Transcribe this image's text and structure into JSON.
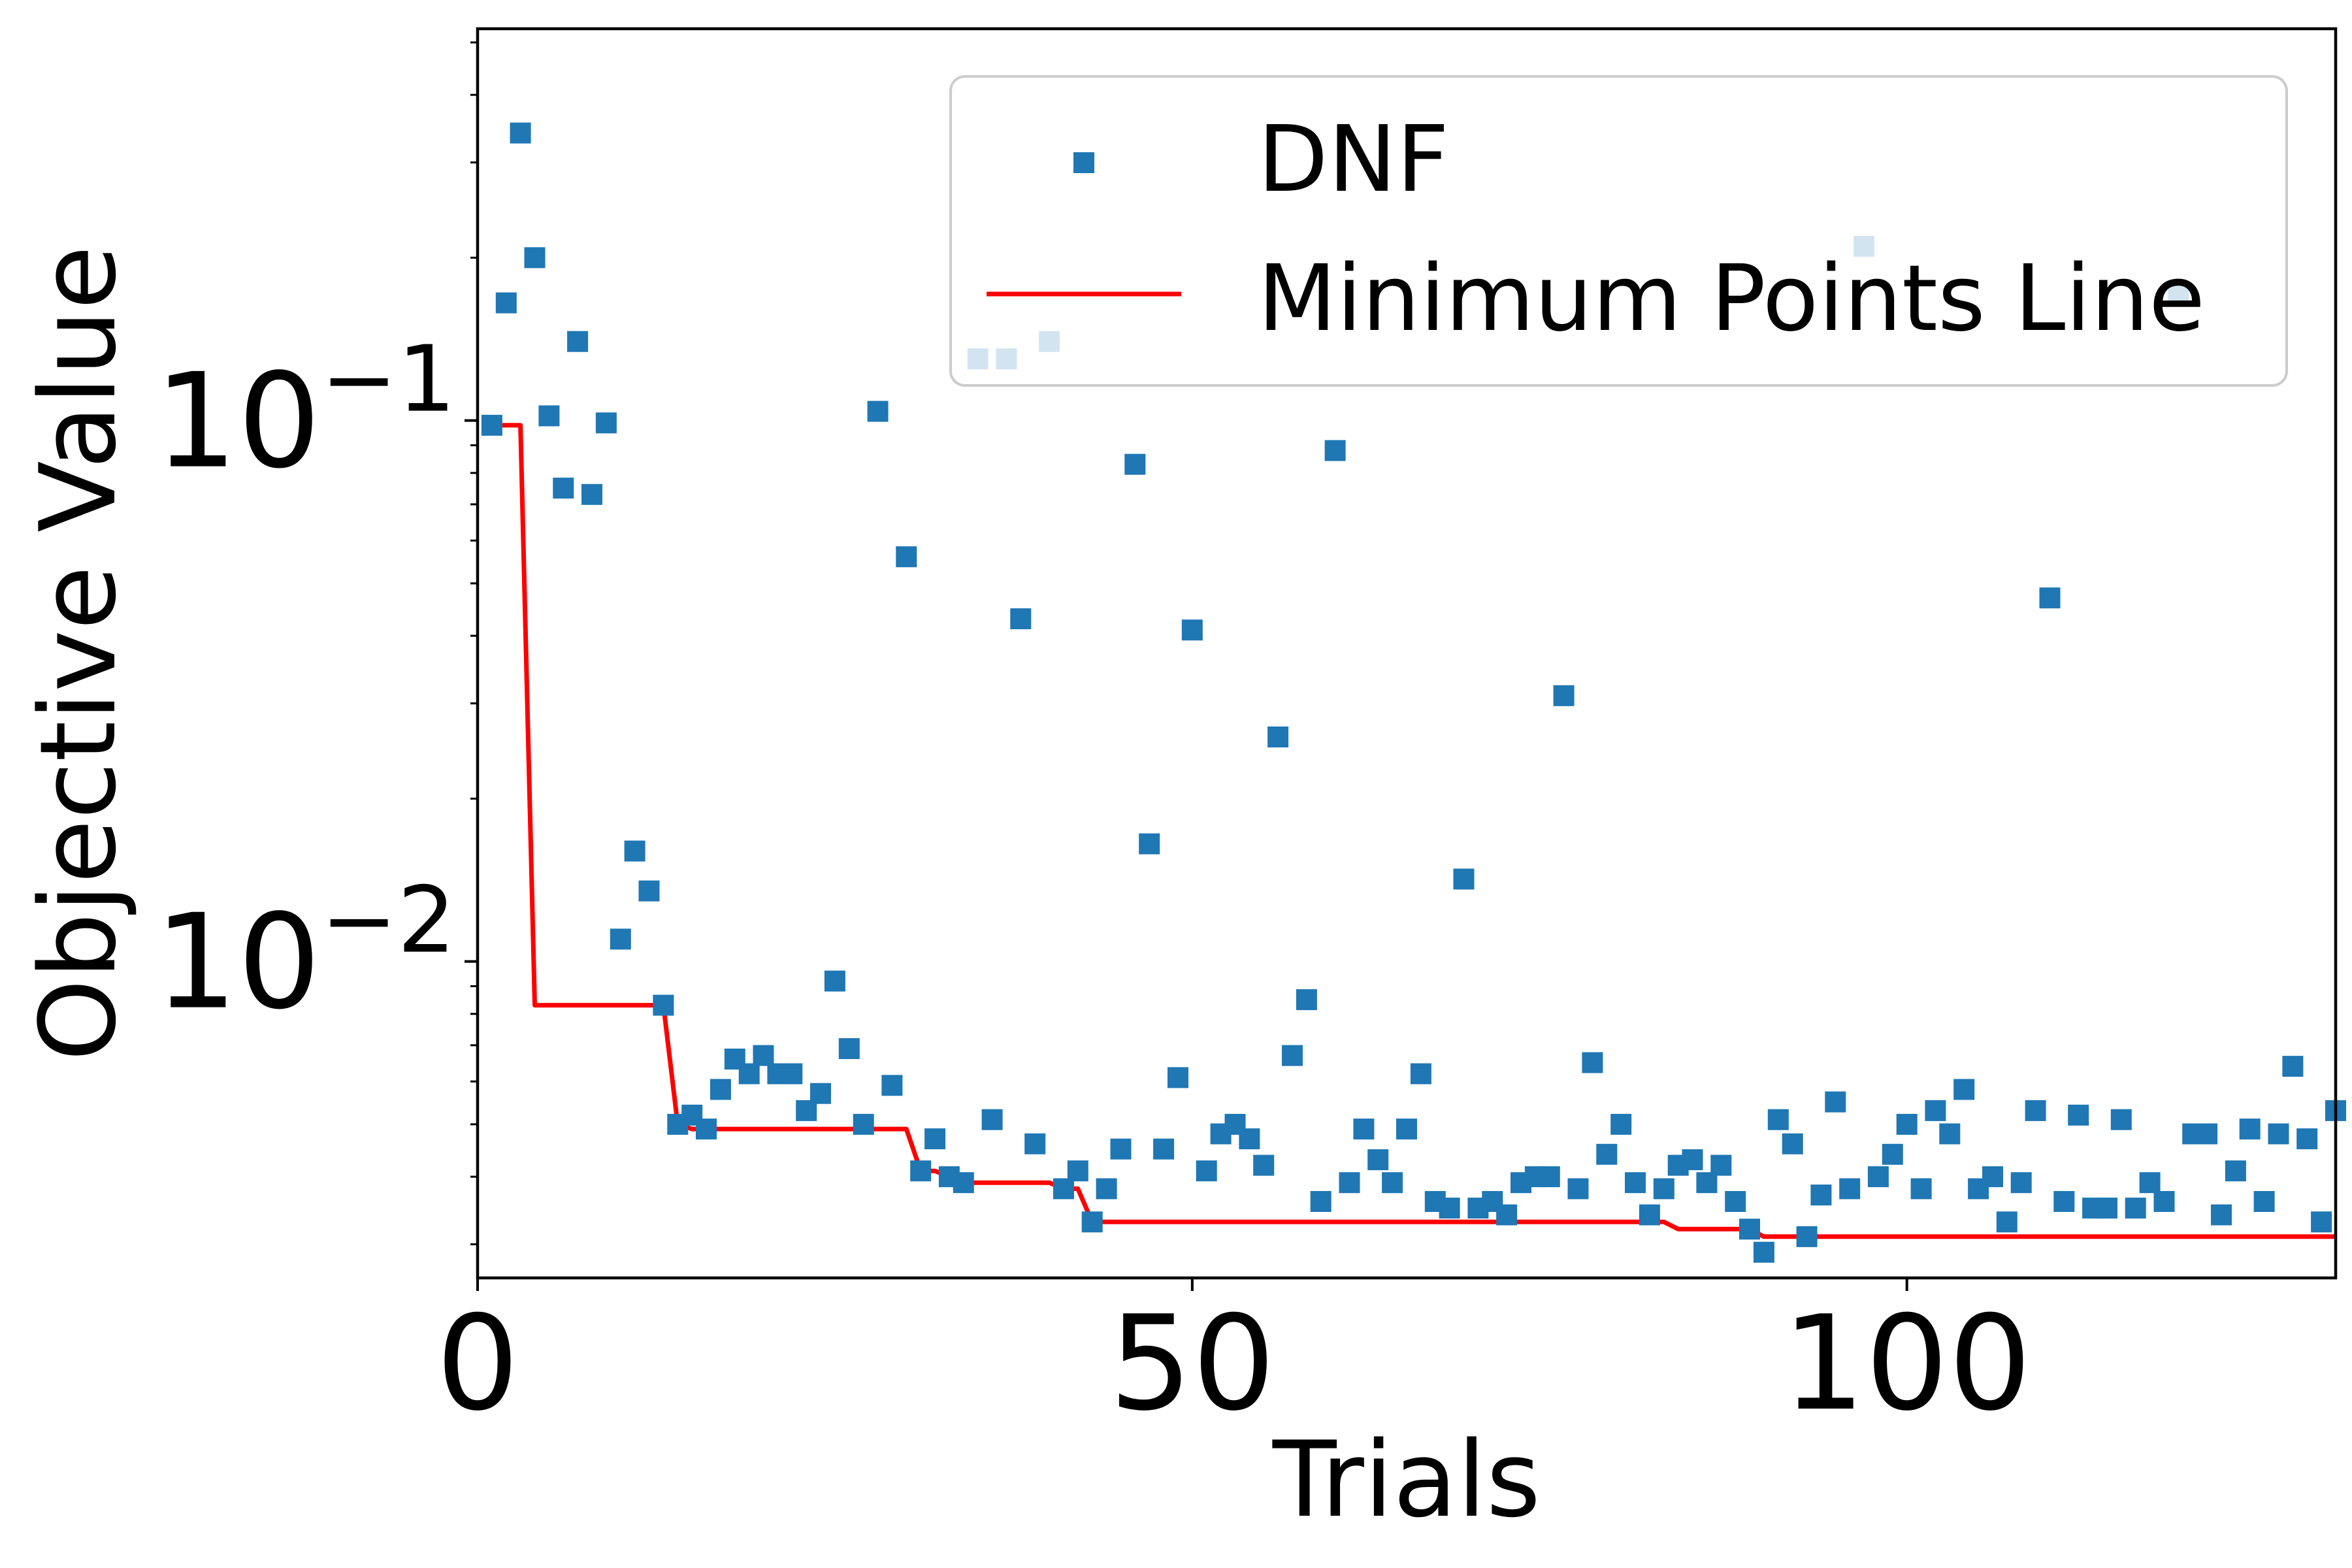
{
  "chart_data": {
    "type": "scatter",
    "xlabel": "Trials",
    "ylabel": "Objective Value",
    "xlim": [
      0,
      130
    ],
    "ylim": [
      0.0026,
      0.53
    ],
    "yscale": "log",
    "xticks": [
      0,
      50,
      100
    ],
    "xtick_labels": [
      "0",
      "50",
      "100"
    ],
    "yticks": [
      0.01,
      0.1
    ],
    "ytick_labels": [
      {
        "base": "10",
        "exp": "−2"
      },
      {
        "base": "10",
        "exp": "−1"
      }
    ],
    "grid": false,
    "legend": {
      "placement": "top-right",
      "entries": [
        "DNF",
        "Minimum Points Line"
      ]
    },
    "colors": {
      "scatter": "#1f77b4",
      "line": "#ff0000"
    },
    "series": [
      {
        "name": "DNF",
        "kind": "scatter",
        "x": [
          1,
          2,
          3,
          4,
          5,
          6,
          7,
          8,
          9,
          10,
          11,
          12,
          13,
          14,
          15,
          16,
          17,
          18,
          19,
          20,
          21,
          22,
          23,
          24,
          25,
          26,
          27,
          28,
          29,
          30,
          31,
          32,
          33,
          34,
          35,
          36,
          37,
          38,
          39,
          40,
          41,
          42,
          43,
          44,
          45,
          46,
          47,
          48,
          49,
          50,
          51,
          52,
          53,
          54,
          55,
          56,
          57,
          58,
          59,
          60,
          61,
          62,
          63,
          64,
          65,
          66,
          67,
          68,
          69,
          70,
          71,
          72,
          73,
          74,
          75,
          76,
          77,
          78,
          79,
          80,
          81,
          82,
          83,
          84,
          85,
          86,
          87,
          88,
          89,
          90,
          91,
          92,
          93,
          94,
          95,
          96,
          97,
          98,
          99,
          100,
          101,
          102,
          103,
          104,
          105,
          106,
          107,
          108,
          109,
          110,
          111,
          112,
          113,
          114,
          115,
          116,
          117,
          118,
          119,
          120,
          121,
          122,
          123,
          124,
          125,
          126,
          127,
          128,
          129,
          130
        ],
        "y": [
          0.098,
          0.165,
          0.34,
          0.2,
          0.102,
          0.075,
          0.14,
          0.073,
          0.099,
          0.011,
          0.016,
          0.0135,
          0.0083,
          0.005,
          0.0052,
          0.0049,
          0.0058,
          0.0066,
          0.0062,
          0.0067,
          0.0062,
          0.0062,
          0.0053,
          0.0057,
          0.0092,
          0.0069,
          0.005,
          0.104,
          0.0059,
          0.056,
          0.0041,
          0.0047,
          0.004,
          0.0039,
          0.13,
          0.0051,
          0.13,
          0.043,
          0.0046,
          0.14,
          0.0038,
          0.0041,
          0.0033,
          0.0038,
          0.0045,
          0.083,
          0.0165,
          0.0045,
          0.0061,
          0.041,
          0.0041,
          0.0048,
          0.005,
          0.0047,
          0.0042,
          0.026,
          0.0067,
          0.0085,
          0.0036,
          0.088,
          0.0039,
          0.0049,
          0.0043,
          0.0039,
          0.0049,
          0.0062,
          0.0036,
          0.0035,
          0.0142,
          0.0035,
          0.0036,
          0.0034,
          0.0039,
          0.004,
          0.004,
          0.031,
          0.0038,
          0.0065,
          0.0044,
          0.005,
          0.0039,
          0.0034,
          0.0038,
          0.0042,
          0.0043,
          0.0039,
          0.0042,
          0.0036,
          0.0032,
          0.0029,
          0.0051,
          0.0046,
          0.0031,
          0.0037,
          0.0055,
          0.0038,
          0.21,
          0.004,
          0.0044,
          0.005,
          0.0038,
          0.0053,
          0.0048,
          0.0058,
          0.0038,
          0.004,
          0.0033,
          0.0039,
          0.0053,
          0.047,
          0.0036,
          0.0052,
          0.0035,
          0.0035,
          0.0051,
          0.0035,
          0.0039,
          0.0036,
          0.17,
          0.0048,
          0.0048,
          0.0034,
          0.0041,
          0.0049,
          0.0036,
          0.0048,
          0.0064,
          0.0047,
          0.0033,
          0.0053
        ]
      },
      {
        "name": "Minimum Points Line",
        "kind": "line",
        "x": [
          1,
          2,
          3,
          4,
          5,
          6,
          7,
          8,
          9,
          10,
          11,
          12,
          13,
          14,
          15,
          16,
          17,
          18,
          19,
          20,
          21,
          22,
          23,
          24,
          25,
          26,
          27,
          28,
          29,
          30,
          31,
          32,
          33,
          34,
          35,
          36,
          37,
          38,
          39,
          40,
          41,
          42,
          43,
          44,
          45,
          46,
          47,
          48,
          49,
          50,
          51,
          52,
          53,
          54,
          55,
          56,
          57,
          58,
          59,
          60,
          61,
          62,
          63,
          64,
          65,
          66,
          67,
          68,
          69,
          70,
          71,
          72,
          73,
          74,
          75,
          76,
          77,
          78,
          79,
          80,
          81,
          82,
          83,
          84,
          85,
          86,
          87,
          88,
          89,
          90,
          91,
          92,
          93,
          94,
          95,
          96,
          97,
          98,
          99,
          100,
          101,
          102,
          103,
          104,
          105,
          106,
          107,
          108,
          109,
          110,
          111,
          112,
          113,
          114,
          115,
          116,
          117,
          118,
          119,
          120,
          121,
          122,
          123,
          124,
          125,
          126,
          127,
          128,
          129,
          130
        ],
        "y": [
          0.098,
          0.098,
          0.098,
          0.0083,
          0.0083,
          0.0083,
          0.0083,
          0.0083,
          0.0083,
          0.0083,
          0.0083,
          0.0083,
          0.0083,
          0.005,
          0.0049,
          0.0049,
          0.0049,
          0.0049,
          0.0049,
          0.0049,
          0.0049,
          0.0049,
          0.0049,
          0.0049,
          0.0049,
          0.0049,
          0.0049,
          0.0049,
          0.0049,
          0.0049,
          0.0041,
          0.0041,
          0.004,
          0.0039,
          0.0039,
          0.0039,
          0.0039,
          0.0039,
          0.0039,
          0.0039,
          0.0038,
          0.0038,
          0.0033,
          0.0033,
          0.0033,
          0.0033,
          0.0033,
          0.0033,
          0.0033,
          0.0033,
          0.0033,
          0.0033,
          0.0033,
          0.0033,
          0.0033,
          0.0033,
          0.0033,
          0.0033,
          0.0033,
          0.0033,
          0.0033,
          0.0033,
          0.0033,
          0.0033,
          0.0033,
          0.0033,
          0.0033,
          0.0033,
          0.0033,
          0.0033,
          0.0033,
          0.0033,
          0.0033,
          0.0033,
          0.0033,
          0.0033,
          0.0033,
          0.0033,
          0.0033,
          0.0033,
          0.0033,
          0.0033,
          0.0033,
          0.0032,
          0.0032,
          0.0032,
          0.0032,
          0.0032,
          0.0032,
          0.0031,
          0.0031,
          0.0031,
          0.0031,
          0.0031,
          0.0031,
          0.0031,
          0.0031,
          0.0031,
          0.0031,
          0.0031,
          0.0031,
          0.0031,
          0.0031,
          0.0031,
          0.0031,
          0.0031,
          0.0031,
          0.0031,
          0.0031,
          0.0031,
          0.0031,
          0.0031,
          0.0031,
          0.0031,
          0.0031,
          0.0031,
          0.0031,
          0.0031,
          0.0031,
          0.0031,
          0.0031,
          0.0031,
          0.0031,
          0.0031,
          0.0031,
          0.0031,
          0.0031,
          0.0031,
          0.0031,
          0.0031
        ]
      }
    ]
  }
}
